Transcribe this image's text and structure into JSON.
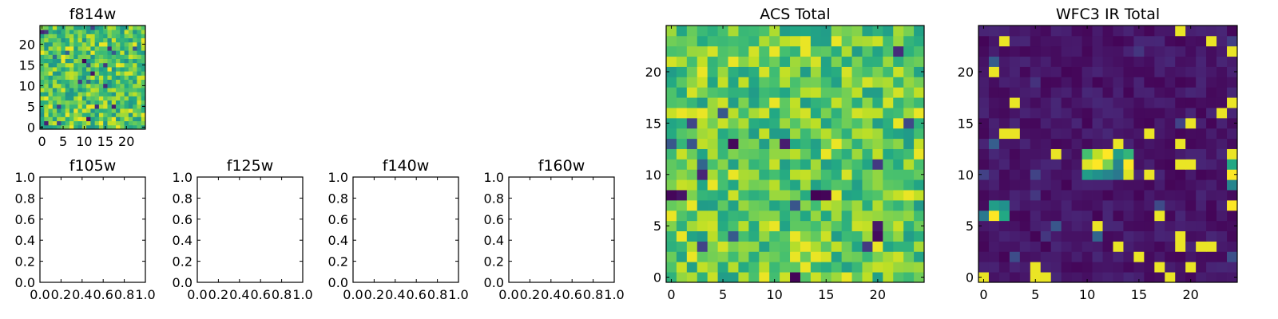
{
  "figure": {
    "background": "#ffffff"
  },
  "colormap": [
    "#440154",
    "#482475",
    "#414487",
    "#355f8d",
    "#2a788e",
    "#21918c",
    "#22a884",
    "#44bf70",
    "#7ad151",
    "#bddf26",
    "#fde725"
  ],
  "chart_data": [
    {
      "id": "f814w",
      "type": "heatmap",
      "title": "f814w",
      "grid_size": 25,
      "seed": 11,
      "background_level": 0.72,
      "noise": 0.22,
      "sources": [],
      "xlim": [
        -0.5,
        24.5
      ],
      "ylim": [
        -0.5,
        24.5
      ],
      "xticks": [
        0,
        5,
        10,
        15,
        20
      ],
      "yticks": [
        0,
        5,
        10,
        15,
        20
      ],
      "xticklabels": [
        "0",
        "5",
        "10",
        "15",
        "20"
      ],
      "yticklabels": [
        "0",
        "5",
        "10",
        "15",
        "20"
      ]
    },
    {
      "id": "f105w",
      "type": "empty",
      "title": "f105w",
      "xlim": [
        0,
        1
      ],
      "ylim": [
        0,
        1
      ],
      "xticklabels": [
        "0.0",
        "0.2",
        "0.4",
        "0.6",
        "0.8",
        "1.0"
      ],
      "yticklabels": [
        "0.0",
        "0.2",
        "0.4",
        "0.6",
        "0.8",
        "1.0"
      ]
    },
    {
      "id": "f125w",
      "type": "empty",
      "title": "f125w",
      "xlim": [
        0,
        1
      ],
      "ylim": [
        0,
        1
      ],
      "xticklabels": [
        "0.0",
        "0.2",
        "0.4",
        "0.6",
        "0.8",
        "1.0"
      ],
      "yticklabels": [
        "0.0",
        "0.2",
        "0.4",
        "0.6",
        "0.8",
        "1.0"
      ]
    },
    {
      "id": "f140w",
      "type": "empty",
      "title": "f140w",
      "xlim": [
        0,
        1
      ],
      "ylim": [
        0,
        1
      ],
      "xticklabels": [
        "0.0",
        "0.2",
        "0.4",
        "0.6",
        "0.8",
        "1.0"
      ],
      "yticklabels": [
        "0.0",
        "0.2",
        "0.4",
        "0.6",
        "0.8",
        "1.0"
      ]
    },
    {
      "id": "f160w",
      "type": "empty",
      "title": "f160w",
      "xlim": [
        0,
        1
      ],
      "ylim": [
        0,
        1
      ],
      "xticklabels": [
        "0.0",
        "0.2",
        "0.4",
        "0.6",
        "0.8",
        "1.0"
      ],
      "yticklabels": [
        "0.0",
        "0.2",
        "0.4",
        "0.6",
        "0.8",
        "1.0"
      ]
    },
    {
      "id": "acs-total",
      "type": "heatmap",
      "title": "ACS Total",
      "grid_size": 25,
      "seed": 29,
      "background_level": 0.74,
      "noise": 0.2,
      "sources": [],
      "xlim": [
        -0.5,
        24.5
      ],
      "ylim": [
        -0.5,
        24.5
      ],
      "xticks": [
        0,
        5,
        10,
        15,
        20
      ],
      "yticks": [
        0,
        5,
        10,
        15,
        20
      ],
      "xticklabels": [
        "0",
        "5",
        "10",
        "15",
        "20"
      ],
      "yticklabels": [
        "0",
        "5",
        "10",
        "15",
        "20"
      ]
    },
    {
      "id": "wfc3-ir-total",
      "type": "heatmap",
      "title": "WFC3 IR Total",
      "grid_size": 25,
      "seed": 47,
      "background_level": 0.06,
      "noise": 0.05,
      "sources": [
        {
          "x": 10,
          "y": 11,
          "value": 0.95
        },
        {
          "x": 11,
          "y": 11,
          "value": 1.0
        },
        {
          "x": 12,
          "y": 11,
          "value": 0.8
        },
        {
          "x": 13,
          "y": 11,
          "value": 0.45
        },
        {
          "x": 14,
          "y": 11,
          "value": 1.0
        },
        {
          "x": 10,
          "y": 12,
          "value": 0.7
        },
        {
          "x": 11,
          "y": 12,
          "value": 0.9
        },
        {
          "x": 12,
          "y": 12,
          "value": 1.0
        },
        {
          "x": 13,
          "y": 12,
          "value": 0.55
        },
        {
          "x": 14,
          "y": 12,
          "value": 0.65
        },
        {
          "x": 11,
          "y": 10,
          "value": 0.5
        },
        {
          "x": 12,
          "y": 10,
          "value": 0.45
        },
        {
          "x": 13,
          "y": 10,
          "value": 0.4
        },
        {
          "x": 14,
          "y": 10,
          "value": 0.95
        },
        {
          "x": 10,
          "y": 10,
          "value": 0.55
        },
        {
          "x": 0,
          "y": 6,
          "value": 0.4
        },
        {
          "x": 1,
          "y": 6,
          "value": 1.0
        },
        {
          "x": 2,
          "y": 6,
          "value": 0.6
        },
        {
          "x": 1,
          "y": 7,
          "value": 0.55
        },
        {
          "x": 2,
          "y": 7,
          "value": 0.5
        },
        {
          "x": 24,
          "y": 10,
          "value": 1.0
        },
        {
          "x": 24,
          "y": 11,
          "value": 0.6
        },
        {
          "x": 24,
          "y": 7,
          "value": 1.0
        },
        {
          "x": 24,
          "y": 9,
          "value": 0.45
        }
      ],
      "xlim": [
        -0.5,
        24.5
      ],
      "ylim": [
        -0.5,
        24.5
      ],
      "xticks": [
        0,
        5,
        10,
        15,
        20
      ],
      "yticks": [
        0,
        5,
        10,
        15,
        20
      ],
      "xticklabels": [
        "0",
        "5",
        "10",
        "15",
        "20"
      ],
      "yticklabels": [
        "0",
        "5",
        "10",
        "15",
        "20"
      ]
    }
  ]
}
